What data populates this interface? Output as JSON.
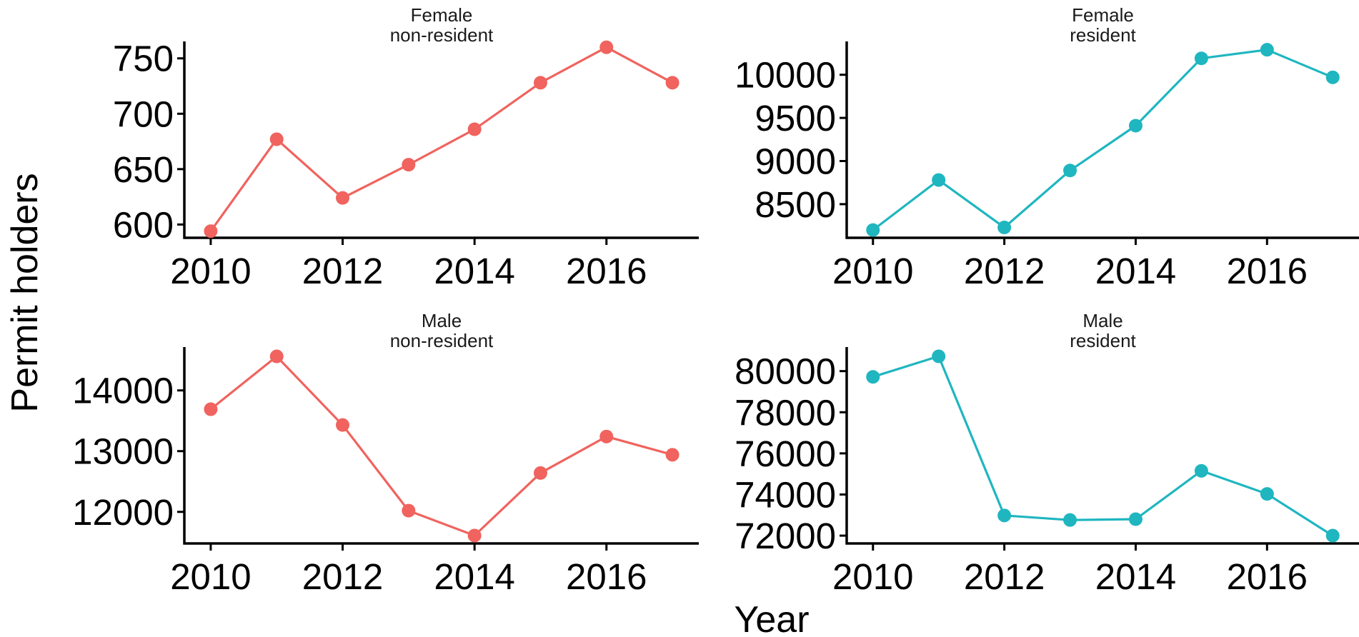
{
  "chart_data": {
    "type": "line",
    "xlabel": "Year",
    "ylabel": "Permit holders",
    "colors": {
      "non_resident": "#F0635E",
      "resident": "#1FB6C0"
    },
    "panels": [
      {
        "title_lines": [
          "Female",
          "non-resident"
        ],
        "color_key": "non_resident",
        "x": [
          2010,
          2011,
          2012,
          2013,
          2014,
          2015,
          2016,
          2017
        ],
        "y": [
          594,
          677,
          624,
          654,
          686,
          728,
          760,
          728
        ],
        "xlim": [
          2009.6,
          2017.4
        ],
        "ylim": [
          588,
          764
        ],
        "xticks": [
          2010,
          2012,
          2014,
          2016
        ],
        "yticks": [
          600,
          650,
          700,
          750
        ]
      },
      {
        "title_lines": [
          "Female",
          "resident"
        ],
        "color_key": "resident",
        "x": [
          2010,
          2011,
          2012,
          2013,
          2014,
          2015,
          2016,
          2017
        ],
        "y": [
          8200,
          8780,
          8230,
          8890,
          9410,
          10190,
          10290,
          9970
        ],
        "xlim": [
          2009.6,
          2017.4
        ],
        "ylim": [
          8110,
          10370
        ],
        "xticks": [
          2010,
          2012,
          2014,
          2016
        ],
        "yticks": [
          8500,
          9000,
          9500,
          10000
        ]
      },
      {
        "title_lines": [
          "Male",
          "non-resident"
        ],
        "color_key": "non_resident",
        "x": [
          2010,
          2011,
          2012,
          2013,
          2014,
          2015,
          2016,
          2017
        ],
        "y": [
          13690,
          14560,
          13430,
          12020,
          11610,
          12640,
          13240,
          12940
        ],
        "xlim": [
          2009.6,
          2017.4
        ],
        "ylim": [
          11480,
          14690
        ],
        "xticks": [
          2010,
          2012,
          2014,
          2016
        ],
        "yticks": [
          12000,
          13000,
          14000
        ]
      },
      {
        "title_lines": [
          "Male",
          "resident"
        ],
        "color_key": "resident",
        "x": [
          2010,
          2011,
          2012,
          2013,
          2014,
          2015,
          2016,
          2017
        ],
        "y": [
          79720,
          80720,
          72980,
          72760,
          72800,
          75150,
          74030,
          72000
        ],
        "xlim": [
          2009.6,
          2017.4
        ],
        "ylim": [
          71620,
          81100
        ],
        "xticks": [
          2010,
          2012,
          2014,
          2016
        ],
        "yticks": [
          72000,
          74000,
          76000,
          78000,
          80000
        ]
      }
    ]
  }
}
